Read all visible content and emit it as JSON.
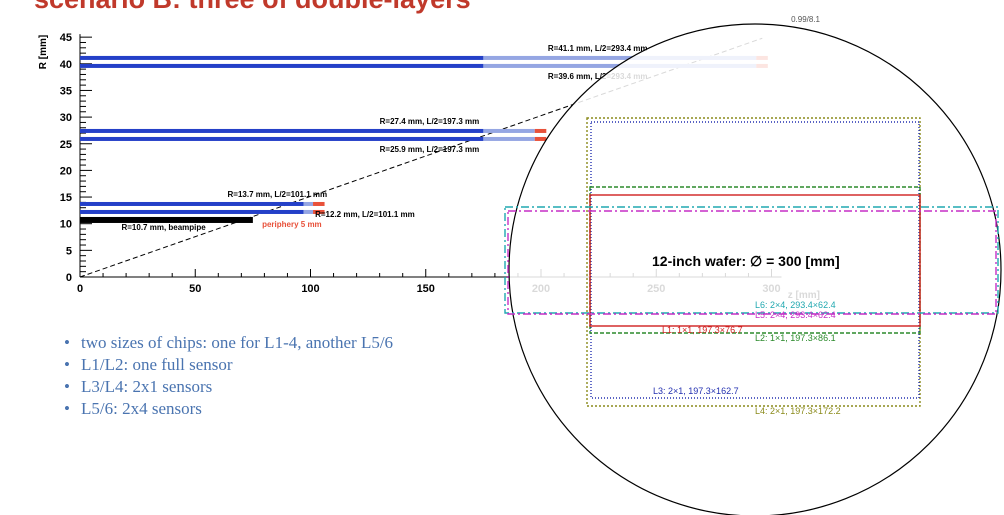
{
  "slide": {
    "title": "scenario B: three of double-layers",
    "bullets": [
      "two sizes of chips: one for L1-4, another L5/6",
      "L1/L2: one full sensor",
      "L3/L4: 2x1 sensors",
      "L5/6: 2x4 sensors"
    ]
  },
  "chart_data": [
    {
      "type": "bar",
      "orientation": "horizontal",
      "title": "",
      "xlabel": "z [mm]",
      "ylabel": "R [mm]",
      "xlim": [
        0,
        300
      ],
      "ylim": [
        0,
        45
      ],
      "x_ticks": [
        0,
        50,
        100,
        150,
        200,
        250,
        300
      ],
      "y_ticks": [
        0,
        5,
        10,
        15,
        20,
        25,
        30,
        35,
        40,
        45
      ],
      "series": [
        {
          "label": "R=41.1 mm, L/2=293.4 mm",
          "R": 41.1,
          "half_length": 293.4,
          "color": "#2440c8"
        },
        {
          "label": "R=39.6 mm, L/2=293.4 mm",
          "R": 39.6,
          "half_length": 293.4,
          "color": "#2440c8"
        },
        {
          "label": "R=27.4 mm, L/2=197.3 mm",
          "R": 27.4,
          "half_length": 197.3,
          "color": "#2440c8"
        },
        {
          "label": "R=25.9 mm, L/2=197.3 mm",
          "R": 25.9,
          "half_length": 197.3,
          "color": "#2440c8"
        },
        {
          "label": "R=13.7 mm, L/2=101.1 mm",
          "R": 13.7,
          "half_length": 101.1,
          "color": "#2440c8"
        },
        {
          "label": "R=12.2 mm, L/2=101.1 mm",
          "R": 12.2,
          "half_length": 101.1,
          "color": "#2440c8"
        }
      ],
      "beampipe": {
        "label": "R=10.7 mm, beampipe",
        "R": 10.7,
        "half_length": 75
      },
      "periphery_label": "periphery 5 mm",
      "acceptance_label": "0.99/8.1",
      "colors": {
        "sensor": "#2440c8",
        "sensor_light": "#95a6e3",
        "periphery": "#e8513a",
        "beampipe": "#000000"
      }
    },
    {
      "type": "layout",
      "title": "12-inch wafer: ∅ = 300 [mm]",
      "wafer_diameter_mm": 300,
      "chip_labels": [
        {
          "name": "L6: 2×4, 293.4×62.4",
          "color": "#20a8b0"
        },
        {
          "name": "L5: 2×4, 293.4×62.4",
          "color": "#c62fc6"
        },
        {
          "name": "L1: 1×1, 197.3×76.7",
          "color": "#d02020"
        },
        {
          "name": "L2: 1×1, 197.3×86.1",
          "color": "#2b8a2b"
        },
        {
          "name": "L3: 2×1, 197.3×162.7",
          "color": "#2330b0"
        },
        {
          "name": "L4: 2×1, 197.3×172.2",
          "color": "#8a8a1a"
        }
      ]
    }
  ]
}
